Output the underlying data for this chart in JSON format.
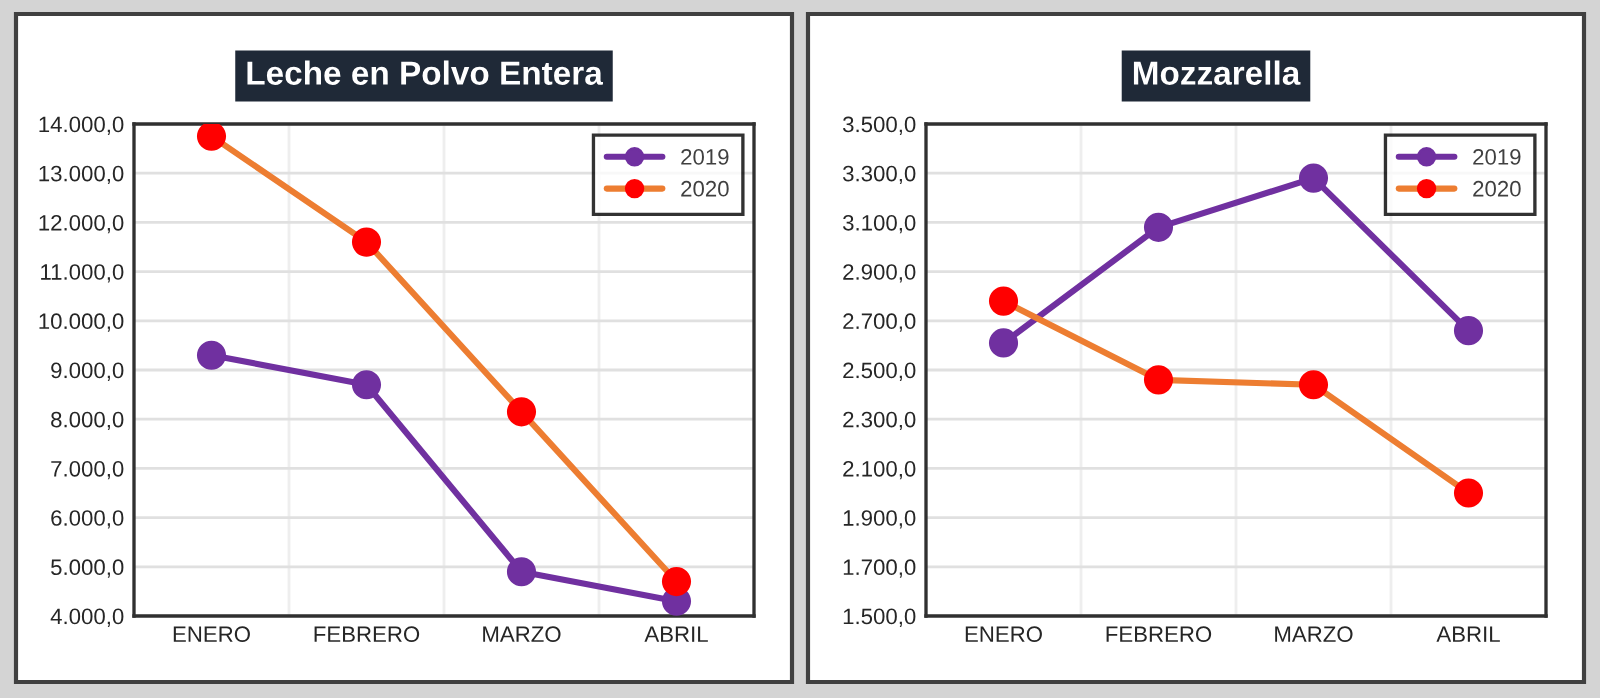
{
  "chart_data": [
    {
      "type": "line",
      "title": "Leche en Polvo Entera",
      "categories": [
        "ENERO",
        "FEBRERO",
        "MARZO",
        "ABRIL"
      ],
      "series": [
        {
          "name": "2019",
          "color": "#7030a0",
          "values": [
            9300,
            8700,
            4900,
            4300
          ]
        },
        {
          "name": "2020",
          "color": "#ed7d31",
          "colors": [
            "#ff0000",
            "#ff0000",
            "#ff0000",
            "#ff0000"
          ],
          "values": [
            13750,
            11600,
            8150,
            4700
          ]
        }
      ],
      "ylim": [
        4000,
        14000
      ],
      "yticks": [
        {
          "value": 4000,
          "label": "4.000,0"
        },
        {
          "value": 5000,
          "label": "5.000,0"
        },
        {
          "value": 6000,
          "label": "6.000,0"
        },
        {
          "value": 7000,
          "label": "7.000,0"
        },
        {
          "value": 8000,
          "label": "8.000,0"
        },
        {
          "value": 9000,
          "label": "9.000,0"
        },
        {
          "value": 10000,
          "label": "10.000,0"
        },
        {
          "value": 11000,
          "label": "11.000,0"
        },
        {
          "value": 12000,
          "label": "12.000,0"
        },
        {
          "value": 13000,
          "label": "13.000,0"
        },
        {
          "value": 14000,
          "label": "14.000,0"
        }
      ],
      "grid": true,
      "legend": "top right",
      "marker": "circle",
      "line_style": "solid"
    },
    {
      "type": "line",
      "title": "Mozzarella",
      "categories": [
        "ENERO",
        "FEBRERO",
        "MARZO",
        "ABRIL"
      ],
      "series": [
        {
          "name": "2019",
          "color": "#7030a0",
          "values": [
            2610,
            3080,
            3280,
            2660
          ]
        },
        {
          "name": "2020",
          "color": "#ed7d31",
          "colors": [
            "#ff0000",
            "#ff0000",
            "#ff0000",
            "#ff0000"
          ],
          "values": [
            2780,
            2460,
            2440,
            2000
          ]
        }
      ],
      "ylim": [
        1500,
        3500
      ],
      "yticks": [
        {
          "value": 1500,
          "label": "1.500,0"
        },
        {
          "value": 1700,
          "label": "1.700,0"
        },
        {
          "value": 1900,
          "label": "1.900,0"
        },
        {
          "value": 2100,
          "label": "2.100,0"
        },
        {
          "value": 2300,
          "label": "2.300,0"
        },
        {
          "value": 2500,
          "label": "2.500,0"
        },
        {
          "value": 2700,
          "label": "2.700,0"
        },
        {
          "value": 2900,
          "label": "2.900,0"
        },
        {
          "value": 3100,
          "label": "3.100,0"
        },
        {
          "value": 3300,
          "label": "3.300,0"
        },
        {
          "value": 3500,
          "label": "3.500,0"
        }
      ],
      "grid": true,
      "legend": "top right",
      "marker": "circle",
      "line_style": "solid"
    }
  ]
}
